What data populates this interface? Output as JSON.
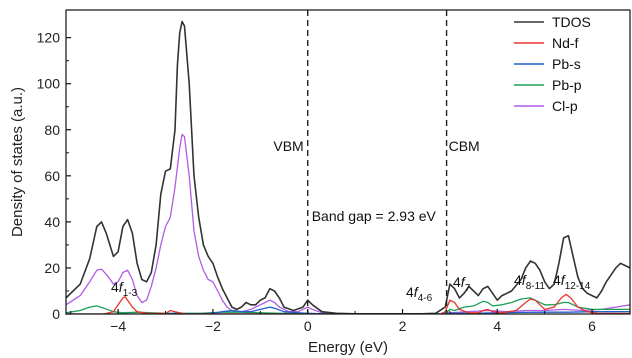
{
  "chart_data": {
    "type": "line",
    "xlabel": "Energy (eV)",
    "ylabel": "Density of states (a.u.)",
    "xlim": [
      -5.1,
      6.8
    ],
    "ylim": [
      0,
      132
    ],
    "xticks": [
      -4,
      -2,
      0,
      2,
      4,
      6
    ],
    "yticks": [
      0,
      20,
      40,
      60,
      80,
      100,
      120
    ],
    "xtick_labels": [
      "−4",
      "−2",
      "0",
      "2",
      "4",
      "6"
    ],
    "ytick_labels": [
      "0",
      "20",
      "40",
      "60",
      "80",
      "100",
      "120"
    ],
    "legend_position": "top-right",
    "grid": false,
    "series": [
      {
        "name": "TDOS",
        "color": "#333333",
        "points": [
          [
            -5.1,
            7
          ],
          [
            -4.8,
            13
          ],
          [
            -4.6,
            24
          ],
          [
            -4.45,
            38
          ],
          [
            -4.35,
            40
          ],
          [
            -4.25,
            35
          ],
          [
            -4.1,
            25
          ],
          [
            -4.0,
            27
          ],
          [
            -3.9,
            38
          ],
          [
            -3.8,
            41
          ],
          [
            -3.7,
            35
          ],
          [
            -3.6,
            22
          ],
          [
            -3.5,
            15
          ],
          [
            -3.4,
            14
          ],
          [
            -3.3,
            18
          ],
          [
            -3.2,
            30
          ],
          [
            -3.1,
            52
          ],
          [
            -3.0,
            62
          ],
          [
            -2.9,
            63
          ],
          [
            -2.8,
            80
          ],
          [
            -2.75,
            108
          ],
          [
            -2.7,
            122
          ],
          [
            -2.65,
            127
          ],
          [
            -2.6,
            125
          ],
          [
            -2.5,
            100
          ],
          [
            -2.4,
            60
          ],
          [
            -2.3,
            42
          ],
          [
            -2.2,
            30
          ],
          [
            -2.1,
            25
          ],
          [
            -2.0,
            22
          ],
          [
            -1.9,
            16
          ],
          [
            -1.8,
            11
          ],
          [
            -1.7,
            7
          ],
          [
            -1.6,
            3
          ],
          [
            -1.5,
            2
          ],
          [
            -1.4,
            3
          ],
          [
            -1.3,
            5
          ],
          [
            -1.2,
            4
          ],
          [
            -1.1,
            4
          ],
          [
            -1.0,
            6
          ],
          [
            -0.9,
            7
          ],
          [
            -0.8,
            11
          ],
          [
            -0.7,
            10
          ],
          [
            -0.6,
            7
          ],
          [
            -0.5,
            3
          ],
          [
            -0.3,
            1.5
          ],
          [
            -0.1,
            3
          ],
          [
            0.0,
            6
          ],
          [
            0.1,
            4
          ],
          [
            0.3,
            1
          ],
          [
            0.6,
            0.3
          ],
          [
            1.0,
            0.1
          ],
          [
            1.5,
            0.1
          ],
          [
            2.0,
            0.1
          ],
          [
            2.4,
            0.1
          ],
          [
            2.7,
            0.3
          ],
          [
            2.9,
            3
          ],
          [
            3.0,
            13
          ],
          [
            3.1,
            11
          ],
          [
            3.2,
            7
          ],
          [
            3.3,
            9
          ],
          [
            3.4,
            12
          ],
          [
            3.5,
            10
          ],
          [
            3.6,
            8
          ],
          [
            3.7,
            11
          ],
          [
            3.8,
            12
          ],
          [
            3.9,
            9
          ],
          [
            4.0,
            6
          ],
          [
            4.1,
            8
          ],
          [
            4.3,
            10
          ],
          [
            4.5,
            15
          ],
          [
            4.6,
            20
          ],
          [
            4.7,
            23
          ],
          [
            4.8,
            22
          ],
          [
            4.9,
            19
          ],
          [
            5.0,
            14
          ],
          [
            5.1,
            11
          ],
          [
            5.2,
            13
          ],
          [
            5.3,
            22
          ],
          [
            5.4,
            33
          ],
          [
            5.5,
            34
          ],
          [
            5.6,
            25
          ],
          [
            5.7,
            16
          ],
          [
            5.8,
            11
          ],
          [
            5.9,
            9
          ],
          [
            6.0,
            8
          ],
          [
            6.1,
            7
          ],
          [
            6.2,
            10
          ],
          [
            6.3,
            14
          ],
          [
            6.5,
            20
          ],
          [
            6.6,
            22
          ],
          [
            6.7,
            21
          ],
          [
            6.8,
            20
          ]
        ]
      },
      {
        "name": "Nd-f",
        "color": "#e8342c",
        "points": [
          [
            -5.1,
            0
          ],
          [
            -4.3,
            0
          ],
          [
            -4.1,
            1
          ],
          [
            -4.0,
            4
          ],
          [
            -3.9,
            7
          ],
          [
            -3.85,
            7.5
          ],
          [
            -3.8,
            6
          ],
          [
            -3.7,
            3
          ],
          [
            -3.6,
            1
          ],
          [
            -3.4,
            0.3
          ],
          [
            -3.0,
            0.2
          ],
          [
            -2.9,
            1.5
          ],
          [
            -2.8,
            1
          ],
          [
            -2.6,
            0.1
          ],
          [
            0,
            0
          ],
          [
            2.8,
            0
          ],
          [
            2.9,
            1
          ],
          [
            3.0,
            6
          ],
          [
            3.1,
            5
          ],
          [
            3.2,
            2
          ],
          [
            3.4,
            0.5
          ],
          [
            3.6,
            0.5
          ],
          [
            3.7,
            1.5
          ],
          [
            3.8,
            2
          ],
          [
            3.9,
            1
          ],
          [
            4.1,
            0.5
          ],
          [
            4.4,
            1.5
          ],
          [
            4.6,
            5
          ],
          [
            4.7,
            6.5
          ],
          [
            4.8,
            6
          ],
          [
            4.9,
            4
          ],
          [
            5.0,
            2
          ],
          [
            5.2,
            3
          ],
          [
            5.35,
            7
          ],
          [
            5.45,
            8.5
          ],
          [
            5.55,
            7
          ],
          [
            5.7,
            3
          ],
          [
            5.9,
            1
          ],
          [
            6.1,
            0.3
          ],
          [
            6.8,
            0.2
          ]
        ]
      },
      {
        "name": "Pb-s",
        "color": "#1f5fc8",
        "points": [
          [
            -5.1,
            0
          ],
          [
            -3.0,
            0
          ],
          [
            -2.8,
            0.3
          ],
          [
            -2.4,
            0.1
          ],
          [
            -2.0,
            0.3
          ],
          [
            -1.8,
            1
          ],
          [
            -1.6,
            1.5
          ],
          [
            -1.4,
            1
          ],
          [
            -1.2,
            1
          ],
          [
            -1.0,
            2
          ],
          [
            -0.8,
            3
          ],
          [
            -0.7,
            2.5
          ],
          [
            -0.5,
            1
          ],
          [
            -0.2,
            0.5
          ],
          [
            0,
            0.3
          ],
          [
            0.5,
            0
          ],
          [
            2.8,
            0
          ],
          [
            3.0,
            0.3
          ],
          [
            3.5,
            0.3
          ],
          [
            4.0,
            0.5
          ],
          [
            4.5,
            0.7
          ],
          [
            5.0,
            0.8
          ],
          [
            5.5,
            0.8
          ],
          [
            6.0,
            1
          ],
          [
            6.8,
            1
          ]
        ]
      },
      {
        "name": "Pb-p",
        "color": "#1aa058",
        "points": [
          [
            -5.1,
            0.5
          ],
          [
            -4.8,
            1.5
          ],
          [
            -4.6,
            3
          ],
          [
            -4.45,
            3.5
          ],
          [
            -4.3,
            2.5
          ],
          [
            -4.1,
            1
          ],
          [
            -3.9,
            0.5
          ],
          [
            -3.6,
            0.8
          ],
          [
            -3.3,
            0.5
          ],
          [
            -3.0,
            0.3
          ],
          [
            -2.6,
            0.3
          ],
          [
            -2.2,
            0.4
          ],
          [
            -1.8,
            0.8
          ],
          [
            -1.4,
            0.8
          ],
          [
            -1.0,
            0.5
          ],
          [
            -0.6,
            0.3
          ],
          [
            0,
            0.2
          ],
          [
            0.5,
            0
          ],
          [
            2.8,
            0
          ],
          [
            2.95,
            1
          ],
          [
            3.0,
            2
          ],
          [
            3.1,
            1.5
          ],
          [
            3.3,
            3
          ],
          [
            3.5,
            3.5
          ],
          [
            3.7,
            5.5
          ],
          [
            3.8,
            5
          ],
          [
            3.9,
            3.5
          ],
          [
            4.1,
            4
          ],
          [
            4.3,
            5
          ],
          [
            4.5,
            6.5
          ],
          [
            4.7,
            7
          ],
          [
            4.8,
            6
          ],
          [
            5.0,
            4
          ],
          [
            5.2,
            4
          ],
          [
            5.4,
            5
          ],
          [
            5.5,
            5
          ],
          [
            5.7,
            3
          ],
          [
            6.0,
            2
          ],
          [
            6.3,
            2
          ],
          [
            6.8,
            2
          ]
        ]
      },
      {
        "name": "Cl-p",
        "color": "#b05be8",
        "points": [
          [
            -5.1,
            4
          ],
          [
            -4.8,
            8
          ],
          [
            -4.6,
            14
          ],
          [
            -4.45,
            19
          ],
          [
            -4.35,
            19.5
          ],
          [
            -4.2,
            16
          ],
          [
            -4.1,
            13
          ],
          [
            -4.0,
            14
          ],
          [
            -3.9,
            18
          ],
          [
            -3.8,
            19
          ],
          [
            -3.7,
            15
          ],
          [
            -3.6,
            8
          ],
          [
            -3.5,
            5
          ],
          [
            -3.4,
            6
          ],
          [
            -3.3,
            12
          ],
          [
            -3.2,
            20
          ],
          [
            -3.1,
            30
          ],
          [
            -3.0,
            38
          ],
          [
            -2.9,
            42
          ],
          [
            -2.8,
            55
          ],
          [
            -2.7,
            72
          ],
          [
            -2.65,
            78
          ],
          [
            -2.6,
            77
          ],
          [
            -2.5,
            60
          ],
          [
            -2.4,
            36
          ],
          [
            -2.3,
            25
          ],
          [
            -2.2,
            19
          ],
          [
            -2.1,
            15
          ],
          [
            -2.0,
            14
          ],
          [
            -1.9,
            10
          ],
          [
            -1.8,
            6
          ],
          [
            -1.7,
            3
          ],
          [
            -1.6,
            1.5
          ],
          [
            -1.4,
            1
          ],
          [
            -1.2,
            2
          ],
          [
            -1.0,
            4
          ],
          [
            -0.9,
            5
          ],
          [
            -0.8,
            6
          ],
          [
            -0.7,
            5
          ],
          [
            -0.6,
            3
          ],
          [
            -0.4,
            1
          ],
          [
            -0.2,
            1
          ],
          [
            0.0,
            3
          ],
          [
            0.1,
            2
          ],
          [
            0.3,
            0.5
          ],
          [
            0.6,
            0
          ],
          [
            2.8,
            0
          ],
          [
            3.0,
            0.5
          ],
          [
            3.4,
            1
          ],
          [
            3.8,
            1.5
          ],
          [
            4.2,
            1
          ],
          [
            4.6,
            1.5
          ],
          [
            5.0,
            1.5
          ],
          [
            5.4,
            2
          ],
          [
            5.8,
            1.5
          ],
          [
            6.2,
            2
          ],
          [
            6.5,
            3
          ],
          [
            6.8,
            4
          ]
        ]
      }
    ],
    "reference_lines": [
      {
        "x": 0,
        "label": "VBM"
      },
      {
        "x": 2.93,
        "label": "CBM"
      }
    ],
    "annotations": [
      {
        "base": "4",
        "italic": "f",
        "sub": "1-3",
        "x": -3.95,
        "y": 8
      },
      {
        "base": "4",
        "italic": "f",
        "sub": "4-6",
        "x": 2.75,
        "y": 8
      },
      {
        "base": "4",
        "italic": "f",
        "sub": "7",
        "x": 3.15,
        "y": 12
      },
      {
        "base": "4",
        "italic": "f",
        "sub": "8-11",
        "x": 4.55,
        "y": 13
      },
      {
        "base": "4",
        "italic": "f",
        "sub": "12-14",
        "x": 5.4,
        "y": 13
      }
    ],
    "band_gap_text": "Band gap = 2.93 eV"
  }
}
